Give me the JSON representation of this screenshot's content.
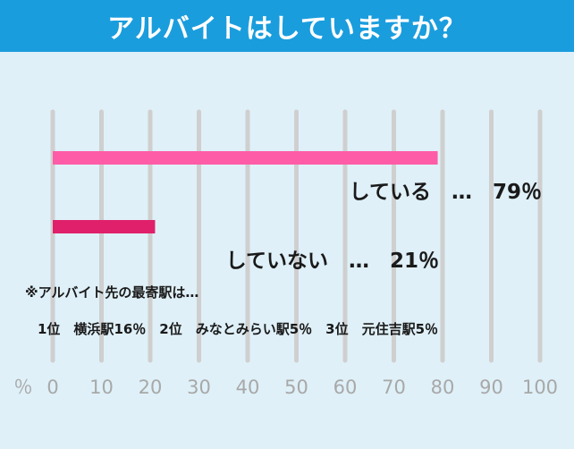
{
  "title": "アルバイトはしていますか？",
  "chart_data": {
    "type": "bar",
    "orientation": "horizontal",
    "categories": [
      "している",
      "していない"
    ],
    "values": [
      79,
      21
    ],
    "value_labels": [
      "している　…　79％",
      "していない　…　21％"
    ],
    "colors": [
      "#ff5ca8",
      "#e0206a"
    ],
    "xlim": [
      0,
      100
    ],
    "x_ticks": [
      "0",
      "10",
      "20",
      "30",
      "40",
      "50",
      "60",
      "70",
      "80",
      "90",
      "100"
    ],
    "x_unit": "％",
    "grid": true
  },
  "note": {
    "heading": "※アルバイト先の最寄駅は…",
    "ranking": "1位　横浜駅16％　2位　みなとみらい駅5％　3位　元住吉駅5％"
  }
}
